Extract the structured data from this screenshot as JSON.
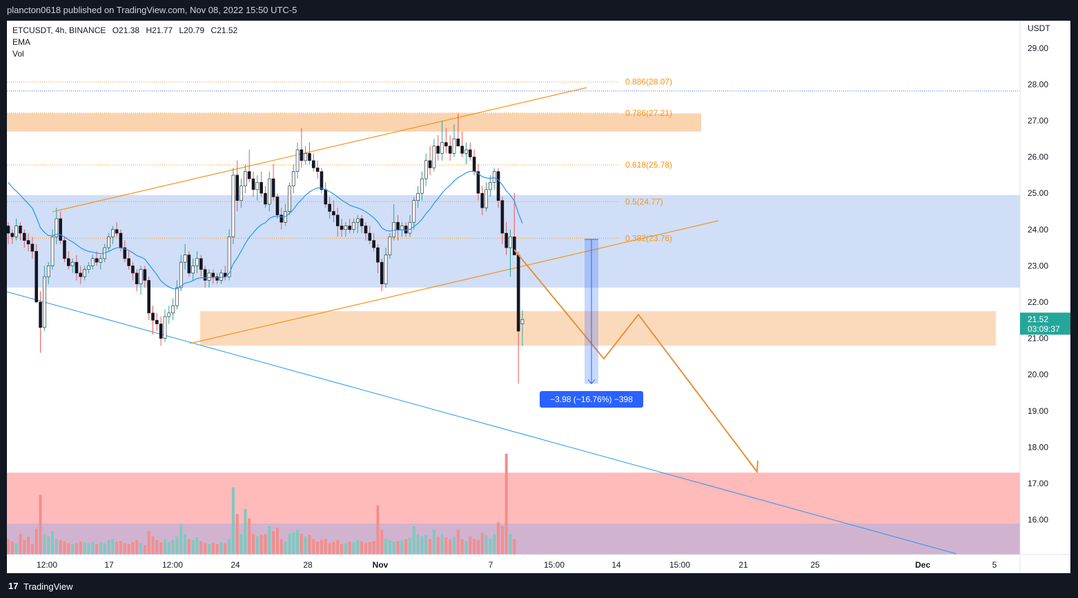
{
  "header": {
    "published_by": "plancton0618 published on TradingView.com, Nov 08, 2022 15:50 UTC-5"
  },
  "legend": {
    "symbol": "ETCUSDT, 4h, BINANCE",
    "open": "O21.38",
    "high": "H21.77",
    "low": "L20.79",
    "close": "C21.52",
    "indicator_1": "EMA",
    "indicator_2": "Vol"
  },
  "footer": {
    "brand": "TradingView",
    "logo_glyph": "17"
  },
  "chart_data": {
    "type": "candlestick",
    "symbol": "ETCUSDT",
    "interval": "4h",
    "exchange": "BINANCE",
    "y_axis": {
      "unit": "USDT",
      "ticks": [
        29.0,
        28.0,
        27.0,
        26.0,
        25.0,
        24.0,
        23.0,
        22.0,
        21.0,
        20.0,
        19.0,
        18.0,
        17.0,
        16.0
      ],
      "range": [
        15.0,
        29.6
      ]
    },
    "x_axis": {
      "ticks": [
        "12:00",
        "17",
        "12:00",
        "24",
        "28",
        "Nov",
        "7",
        "15:00",
        "14",
        "15:00",
        "21",
        "25",
        "Dec",
        "5"
      ],
      "bold_ticks": [
        "Nov",
        "Dec"
      ]
    },
    "current_price": {
      "label": "21.52",
      "countdown": "03:09:37",
      "value": 21.52,
      "color": "#26a69a"
    },
    "fibonacci_levels": [
      {
        "label": "0.886(28.07)",
        "value": 28.07
      },
      {
        "label": "0.786(27.21)",
        "value": 27.21
      },
      {
        "label": "0.618(25.78)",
        "value": 25.78
      },
      {
        "label": "0.5(24.77)",
        "value": 24.77
      },
      {
        "label": "0.382(23.76)",
        "value": 23.76
      }
    ],
    "zones": [
      {
        "name": "orange-resistance",
        "from": 26.7,
        "to": 27.2,
        "color": "#f7b57a"
      },
      {
        "name": "blue-range",
        "from": 22.4,
        "to": 24.95,
        "color": "#a9c3f0"
      },
      {
        "name": "orange-support",
        "from": 20.8,
        "to": 21.75,
        "color": "#f7b57a"
      },
      {
        "name": "red-zone",
        "from": 15.9,
        "to": 17.3,
        "color": "#ff9c9c"
      },
      {
        "name": "purple-zone",
        "from": 15.0,
        "to": 15.9,
        "color": "#c9a6c8"
      }
    ],
    "measure": {
      "label": "−3.98 (−16.76%) −398",
      "from": 23.73,
      "to": 19.75
    },
    "colors": {
      "up": "#26a69a",
      "down": "#ef5350",
      "ema": "#2196f3",
      "trend": "#f7931a",
      "projection": "#e8903a",
      "fib": "#f7931a"
    },
    "candles": [
      [
        24.1,
        24.2,
        23.6,
        23.9
      ],
      [
        23.9,
        24.0,
        23.6,
        23.8
      ],
      [
        23.8,
        24.3,
        23.7,
        24.1
      ],
      [
        24.1,
        24.2,
        23.7,
        23.9
      ],
      [
        23.9,
        24.0,
        23.5,
        23.7
      ],
      [
        23.7,
        23.9,
        23.4,
        23.6
      ],
      [
        23.6,
        23.8,
        23.2,
        23.4
      ],
      [
        23.4,
        23.6,
        22.1,
        22.0
      ],
      [
        22.0,
        22.3,
        20.6,
        21.3
      ],
      [
        21.3,
        23.0,
        21.2,
        22.7
      ],
      [
        22.7,
        23.1,
        22.5,
        23.0
      ],
      [
        23.0,
        24.0,
        22.9,
        23.8
      ],
      [
        23.8,
        24.6,
        23.6,
        24.3
      ],
      [
        24.3,
        24.5,
        23.6,
        23.7
      ],
      [
        23.7,
        23.8,
        23.1,
        23.2
      ],
      [
        23.2,
        23.4,
        22.9,
        23.0
      ],
      [
        23.0,
        23.2,
        22.8,
        23.1
      ],
      [
        23.1,
        23.3,
        22.6,
        22.8
      ],
      [
        22.8,
        23.0,
        22.5,
        22.7
      ],
      [
        22.7,
        23.0,
        22.6,
        22.9
      ],
      [
        22.9,
        23.1,
        22.8,
        23.0
      ],
      [
        23.0,
        23.3,
        22.9,
        23.2
      ],
      [
        23.2,
        23.4,
        23.0,
        23.1
      ],
      [
        23.1,
        23.3,
        22.9,
        23.2
      ],
      [
        23.2,
        23.6,
        23.1,
        23.5
      ],
      [
        23.5,
        23.9,
        23.4,
        23.8
      ],
      [
        23.8,
        24.1,
        23.6,
        24.0
      ],
      [
        24.0,
        24.2,
        23.8,
        23.9
      ],
      [
        23.9,
        24.0,
        23.4,
        23.5
      ],
      [
        23.5,
        23.7,
        23.1,
        23.2
      ],
      [
        23.2,
        23.4,
        22.9,
        23.0
      ],
      [
        23.0,
        23.1,
        22.6,
        22.8
      ],
      [
        22.8,
        22.9,
        22.3,
        22.5
      ],
      [
        22.5,
        23.0,
        22.2,
        22.9
      ],
      [
        22.9,
        23.0,
        22.4,
        22.6
      ],
      [
        22.6,
        22.7,
        21.5,
        21.7
      ],
      [
        21.7,
        21.9,
        21.1,
        21.5
      ],
      [
        21.5,
        21.7,
        21.2,
        21.4
      ],
      [
        21.4,
        21.6,
        20.8,
        21.0
      ],
      [
        21.0,
        21.8,
        20.9,
        21.6
      ],
      [
        21.6,
        21.9,
        21.4,
        21.7
      ],
      [
        21.7,
        22.1,
        21.5,
        21.9
      ],
      [
        21.9,
        22.6,
        21.8,
        22.4
      ],
      [
        22.4,
        23.3,
        22.3,
        23.1
      ],
      [
        23.1,
        23.6,
        22.9,
        23.3
      ],
      [
        23.3,
        23.4,
        22.7,
        22.8
      ],
      [
        22.8,
        23.2,
        22.6,
        23.0
      ],
      [
        23.0,
        23.4,
        22.8,
        23.2
      ],
      [
        23.2,
        23.3,
        22.7,
        22.9
      ],
      [
        22.9,
        23.0,
        22.4,
        22.6
      ],
      [
        22.6,
        22.9,
        22.4,
        22.8
      ],
      [
        22.8,
        22.9,
        22.5,
        22.7
      ],
      [
        22.7,
        22.8,
        22.5,
        22.6
      ],
      [
        22.6,
        22.9,
        22.5,
        22.8
      ],
      [
        22.8,
        23.0,
        22.6,
        22.7
      ],
      [
        22.7,
        24.0,
        22.6,
        23.8
      ],
      [
        23.8,
        25.7,
        23.6,
        25.5
      ],
      [
        25.5,
        25.9,
        24.5,
        24.8
      ],
      [
        24.8,
        25.4,
        24.6,
        25.2
      ],
      [
        25.2,
        25.8,
        25.0,
        25.6
      ],
      [
        25.6,
        26.2,
        25.3,
        25.4
      ],
      [
        25.4,
        25.6,
        24.9,
        25.1
      ],
      [
        25.1,
        25.5,
        24.8,
        25.3
      ],
      [
        25.3,
        25.6,
        24.9,
        25.0
      ],
      [
        25.0,
        25.2,
        24.6,
        24.7
      ],
      [
        24.7,
        25.6,
        24.5,
        25.4
      ],
      [
        25.4,
        25.8,
        24.8,
        24.9
      ],
      [
        24.9,
        25.0,
        24.3,
        24.4
      ],
      [
        24.4,
        24.6,
        24.0,
        24.2
      ],
      [
        24.2,
        24.7,
        24.1,
        24.5
      ],
      [
        24.5,
        25.3,
        24.4,
        25.2
      ],
      [
        25.2,
        25.8,
        25.0,
        25.6
      ],
      [
        25.6,
        26.4,
        25.4,
        26.2
      ],
      [
        26.2,
        26.8,
        25.7,
        25.9
      ],
      [
        25.9,
        26.3,
        25.8,
        26.1
      ],
      [
        26.1,
        26.4,
        25.8,
        25.9
      ],
      [
        25.9,
        26.1,
        25.6,
        25.7
      ],
      [
        25.7,
        25.9,
        25.4,
        25.6
      ],
      [
        25.6,
        25.7,
        25.0,
        25.1
      ],
      [
        25.1,
        25.3,
        24.6,
        24.7
      ],
      [
        24.7,
        24.9,
        24.3,
        24.5
      ],
      [
        24.5,
        24.8,
        24.2,
        24.4
      ],
      [
        24.4,
        24.6,
        23.8,
        24.1
      ],
      [
        24.1,
        24.3,
        23.8,
        24.0
      ],
      [
        24.0,
        24.2,
        23.8,
        24.1
      ],
      [
        24.1,
        24.3,
        23.9,
        24.0
      ],
      [
        24.0,
        24.3,
        23.9,
        24.2
      ],
      [
        24.2,
        24.4,
        23.9,
        24.3
      ],
      [
        24.3,
        24.4,
        23.9,
        24.1
      ],
      [
        24.1,
        24.2,
        23.7,
        23.9
      ],
      [
        23.9,
        24.1,
        23.6,
        23.7
      ],
      [
        23.7,
        23.9,
        23.4,
        23.5
      ],
      [
        23.5,
        23.6,
        22.8,
        23.1
      ],
      [
        23.1,
        23.2,
        22.3,
        22.5
      ],
      [
        22.5,
        23.5,
        22.4,
        23.3
      ],
      [
        23.3,
        23.9,
        23.2,
        23.8
      ],
      [
        23.8,
        24.7,
        23.7,
        24.2
      ],
      [
        24.2,
        24.4,
        23.7,
        24.0
      ],
      [
        24.0,
        24.2,
        23.8,
        24.1
      ],
      [
        24.1,
        24.2,
        23.8,
        23.9
      ],
      [
        23.9,
        24.4,
        23.8,
        24.2
      ],
      [
        24.2,
        24.9,
        24.0,
        24.8
      ],
      [
        24.8,
        25.2,
        24.6,
        25.0
      ],
      [
        25.0,
        25.6,
        24.8,
        25.4
      ],
      [
        25.4,
        26.1,
        25.2,
        25.9
      ],
      [
        25.9,
        26.3,
        25.5,
        25.7
      ],
      [
        25.7,
        26.5,
        25.6,
        26.3
      ],
      [
        26.3,
        26.6,
        25.9,
        26.1
      ],
      [
        26.1,
        27.0,
        25.9,
        26.4
      ],
      [
        26.4,
        26.8,
        26.1,
        26.3
      ],
      [
        26.3,
        26.6,
        25.9,
        26.1
      ],
      [
        26.1,
        26.9,
        26.0,
        26.5
      ],
      [
        26.5,
        27.2,
        26.3,
        26.3
      ],
      [
        26.3,
        26.7,
        26.0,
        26.1
      ],
      [
        26.1,
        26.4,
        25.8,
        26.2
      ],
      [
        26.2,
        26.4,
        25.9,
        26.0
      ],
      [
        26.0,
        26.2,
        25.5,
        25.6
      ],
      [
        25.6,
        25.8,
        24.8,
        25.0
      ],
      [
        25.0,
        25.2,
        24.4,
        24.6
      ],
      [
        24.6,
        25.3,
        24.5,
        25.1
      ],
      [
        25.1,
        25.5,
        24.9,
        25.3
      ],
      [
        25.3,
        25.7,
        25.1,
        25.6
      ],
      [
        25.6,
        25.7,
        24.6,
        24.8
      ],
      [
        24.8,
        24.9,
        23.6,
        23.9
      ],
      [
        23.9,
        24.2,
        23.3,
        23.5
      ],
      [
        23.5,
        24.0,
        22.7,
        23.8
      ],
      [
        23.8,
        25.0,
        23.3,
        23.3
      ],
      [
        23.3,
        23.4,
        19.75,
        21.2
      ],
      [
        21.4,
        21.77,
        20.79,
        21.52
      ]
    ],
    "volumes": [
      30,
      25,
      22,
      40,
      28,
      35,
      20,
      50,
      115,
      40,
      35,
      45,
      30,
      28,
      25,
      22,
      20,
      22,
      25,
      24,
      22,
      25,
      20,
      24,
      22,
      28,
      30,
      25,
      26,
      22,
      20,
      24,
      28,
      22,
      18,
      45,
      35,
      28,
      24,
      30,
      25,
      28,
      35,
      58,
      40,
      30,
      28,
      34,
      26,
      22,
      20,
      22,
      20,
      24,
      22,
      30,
      130,
      78,
      40,
      88,
      70,
      40,
      35,
      38,
      40,
      55,
      45,
      52,
      30,
      25,
      40,
      42,
      48,
      40,
      35,
      38,
      30,
      25,
      28,
      30,
      22,
      24,
      28,
      20,
      22,
      25,
      24,
      28,
      26,
      22,
      24,
      26,
      95,
      48,
      30,
      28,
      25,
      26,
      28,
      30,
      32,
      55,
      40,
      35,
      38,
      30,
      48,
      35,
      40,
      33,
      30,
      34,
      48,
      30,
      26,
      35,
      30,
      28,
      42,
      38,
      30,
      40,
      62,
      55,
      195,
      40,
      30
    ]
  }
}
